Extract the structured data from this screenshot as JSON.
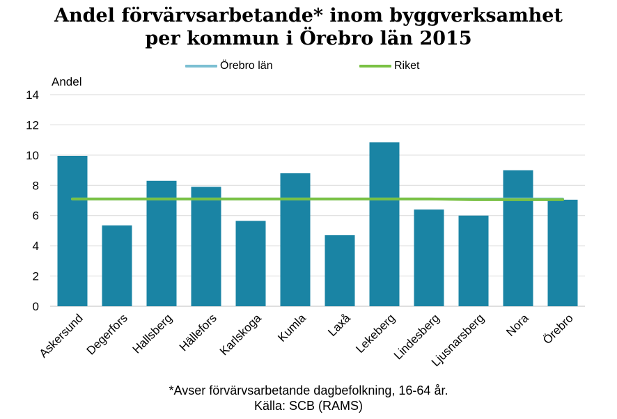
{
  "title_lines": [
    "Andel förvärvsarbetande* inom byggverksamhet",
    "per kommun i Örebro län 2015"
  ],
  "footnote_lines": [
    "*Avser förvärvsarbetande dagbefolkning,  16-64 år.",
    "Källa: SCB (RAMS)"
  ],
  "chart_data": {
    "type": "bar",
    "title": "Andel förvärvsarbetande* inom byggverksamhet per kommun i Örebro län 2015",
    "ylabel": "Andel",
    "xlabel": "",
    "ylim": [
      0,
      14
    ],
    "yticks": [
      0,
      2,
      4,
      6,
      8,
      10,
      12,
      14
    ],
    "grid": true,
    "legend_position": "top",
    "categories": [
      "Askersund",
      "Degerfors",
      "Hallsberg",
      "Hällefors",
      "Karlskoga",
      "Kumla",
      "Laxå",
      "Lekeberg",
      "Lindesberg",
      "Ljusnarsberg",
      "Nora",
      "Örebro"
    ],
    "series": [
      {
        "name": "",
        "kind": "bar",
        "color": "#1a84a4",
        "values": [
          9.95,
          5.35,
          8.3,
          7.9,
          5.65,
          8.8,
          4.7,
          10.85,
          6.4,
          6.0,
          9.0,
          7.05
        ]
      },
      {
        "name": "Örebro län",
        "kind": "line",
        "color": "#7bbfd2",
        "values": [
          7.1,
          7.1,
          7.1,
          7.1,
          7.1,
          7.1,
          7.1,
          7.1,
          7.1,
          7.1,
          7.1,
          7.1
        ]
      },
      {
        "name": "Riket",
        "kind": "line",
        "color": "#7ac144",
        "values": [
          7.1,
          7.1,
          7.1,
          7.1,
          7.1,
          7.1,
          7.1,
          7.1,
          7.1,
          7.05,
          7.05,
          7.05
        ]
      }
    ]
  }
}
